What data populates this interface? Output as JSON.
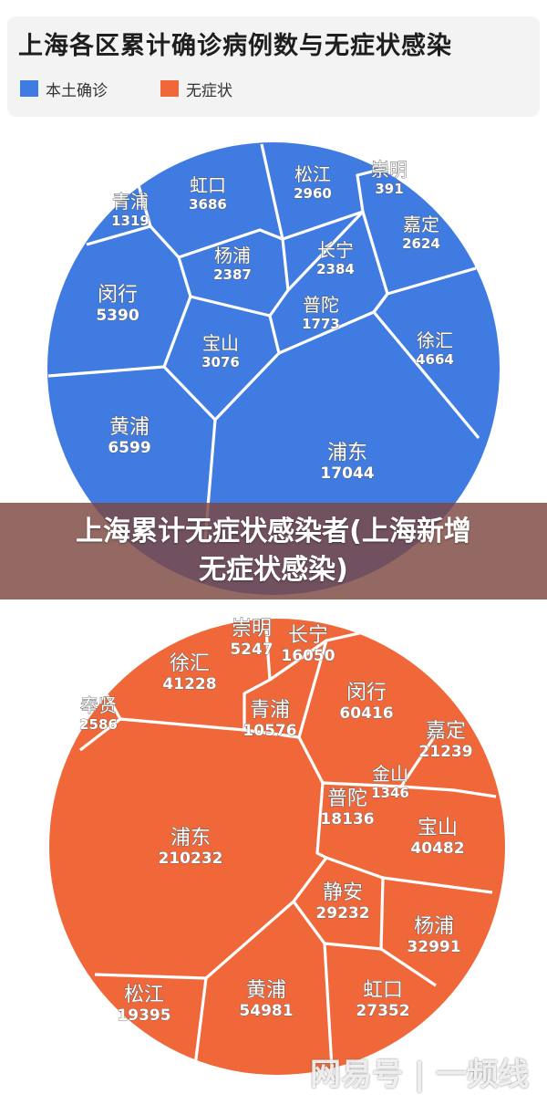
{
  "chart_data": [
    {
      "type": "voronoi-treemap",
      "title": "上海各区累计确诊病例数与无症状感染",
      "legend": [
        {
          "name": "本土确诊",
          "color": "#3f7be0"
        },
        {
          "name": "无症状",
          "color": "#f0683a"
        }
      ],
      "legend_position": "top-left",
      "series_name": "本土确诊",
      "color": "#3f7be0",
      "cells": [
        {
          "name": "虹口",
          "value": 3686
        },
        {
          "name": "松江",
          "value": 2960
        },
        {
          "name": "崇明",
          "value": 391
        },
        {
          "name": "青浦",
          "value": 1319
        },
        {
          "name": "嘉定",
          "value": 2624
        },
        {
          "name": "杨浦",
          "value": 2387
        },
        {
          "name": "长宁",
          "value": 2384
        },
        {
          "name": "闵行",
          "value": 5390
        },
        {
          "name": "普陀",
          "value": 1773
        },
        {
          "name": "宝山",
          "value": 3076
        },
        {
          "name": "徐汇",
          "value": 4664
        },
        {
          "name": "黄浦",
          "value": 6599
        },
        {
          "name": "浦东",
          "value": 17044
        }
      ]
    },
    {
      "type": "voronoi-treemap",
      "series_name": "无症状",
      "color": "#f0683a",
      "cells": [
        {
          "name": "崇明",
          "value": 5247
        },
        {
          "name": "长宁",
          "value": 16050
        },
        {
          "name": "徐汇",
          "value": 41228
        },
        {
          "name": "奉贤",
          "value": 2586
        },
        {
          "name": "青浦",
          "value": 10576
        },
        {
          "name": "闵行",
          "value": 60416
        },
        {
          "name": "嘉定",
          "value": 21239
        },
        {
          "name": "金山",
          "value": 1346
        },
        {
          "name": "普陀",
          "value": 18136
        },
        {
          "name": "浦东",
          "value": 210232
        },
        {
          "name": "宝山",
          "value": 40482
        },
        {
          "name": "静安",
          "value": 29232
        },
        {
          "name": "杨浦",
          "value": 32991
        },
        {
          "name": "松江",
          "value": 19395
        },
        {
          "name": "黄浦",
          "value": 54981
        },
        {
          "name": "虹口",
          "value": 27352
        }
      ]
    }
  ],
  "banner": {
    "line1": "上海累计无症状感染者(上海新增",
    "line2": "无症状感染)"
  },
  "watermark": "网易号 | 一频线"
}
